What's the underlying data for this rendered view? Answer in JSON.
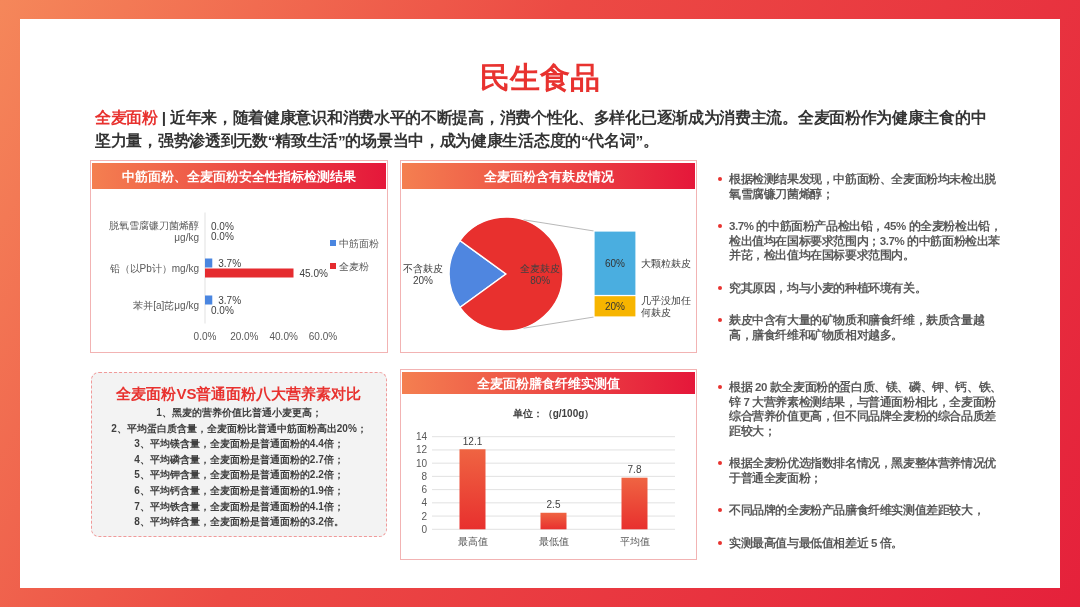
{
  "chart_data": [
    {
      "type": "other",
      "title": "民生食品",
      "subtitle": "**全麦面粉** | 近年来，随着健康意识和消费水平的不断提高，消费个性化、多样化已逐渐成为消费主流。全麦面粉作为健康主食的中坚力量，强势渗透到无数“精致生活”的场景当中，成为健康生活态度的“代名词”。"
    },
    {
      "type": "bar",
      "orientation": "horizontal",
      "title": "中筋面粉、全麦面粉安全性指标检测结果",
      "categories": [
        "脱氧雪腐镰刀菌烯醇μg/kg",
        "铅（以Pb计）mg/kg",
        "苯并[a]芘μg/kg"
      ],
      "series": [
        {
          "name": "中筋面粉",
          "color": "#4a86e0",
          "values": [
            0,
            3.7,
            3.7
          ],
          "value_labels": [
            "0.0%",
            "3.7%",
            "3.7%"
          ]
        },
        {
          "name": "全麦粉",
          "color": "#e52b2f",
          "values": [
            0,
            45,
            0
          ],
          "value_labels": [
            "0.0%",
            "45.0%",
            "0.0%"
          ]
        }
      ],
      "xlim": [
        0,
        60
      ],
      "xticks": [
        {
          "value": 0,
          "label": "0.0%"
        },
        {
          "value": 20,
          "label": "20.0%"
        },
        {
          "value": 40,
          "label": "40.0%"
        },
        {
          "value": 60,
          "label": "60.0%"
        }
      ],
      "legend": "right"
    },
    {
      "type": "pie",
      "title": "全麦面粉含有麸皮情况",
      "categories": [
        "不含麸皮",
        "全麦麸皮"
      ],
      "values": [
        20,
        80
      ],
      "colors": [
        "#4f86e0",
        "#e8302e"
      ],
      "value_labels": [
        "20%",
        "80%"
      ]
    },
    {
      "type": "bar",
      "stacked": true,
      "categories": [
        null
      ],
      "series": [
        {
          "name": "几乎没加任何麸皮",
          "color": "#f7b500",
          "values": [
            20
          ],
          "value_labels": [
            "20%"
          ]
        },
        {
          "name": "大颗粒麸皮",
          "color": "#4aaee0",
          "values": [
            60
          ],
          "value_labels": [
            "60%"
          ]
        }
      ]
    },
    {
      "type": "other",
      "annotations": [
        "根据检测结果发现，中筋面粉、全麦面粉均未检出脱氧雪腐镰刀菌烯醇；",
        "3.7% 的中筋面粉产品检出铅，45% 的全麦粉检出铅，检出值均在国标要求范围内；3.7% 的中筋面粉检出苯并芘，检出值均在国标要求范围内。",
        "究其原因，均与小麦的种植环境有关。",
        "麸皮中含有大量的矿物质和膳食纤维，麸质含量越高，膳食纤维和矿物质相对越多。"
      ]
    },
    {
      "type": "other",
      "title": "全麦面粉VS普通面粉八大营养素对比",
      "annotations": [
        "1、黑麦的营养价值比普通小麦更高；",
        "2、平均蛋白质含量，全麦面粉比普通中筋面粉高出20%；",
        "3、平均镁含量，全麦面粉是普通面粉的4.4倍；",
        "4、平均磷含量，全麦面粉是普通面粉的2.7倍；",
        "5、平均钾含量，全麦面粉是普通面粉的2.2倍；",
        "6、平均钙含量，全麦面粉是普通面粉的1.9倍；",
        "7、平均铁含量，全麦面粉是普通面粉的4.1倍；",
        "8、平均锌含量，全麦面粉是普通面粉的3.2倍。"
      ]
    },
    {
      "type": "bar",
      "title": "全麦面粉膳食纤维实测值",
      "subtitle": "单位：（g/100g）",
      "categories": [
        "最高值",
        "最低值",
        "平均值"
      ],
      "values": [
        12.1,
        2.5,
        7.8
      ],
      "color": "#e8302e",
      "ylim": [
        0,
        14
      ],
      "yticks": [
        0,
        2,
        4,
        6,
        8,
        10,
        12,
        14
      ],
      "grid": "y",
      "data_labels": true
    },
    {
      "type": "other",
      "annotations": [
        "根据 20 款全麦面粉的蛋白质、镁、磷、钾、钙、铁、锌 7 大营养素检测结果，与普通面粉相比，全麦面粉综合营养价值更高，但不同品牌全麦粉的综合品质差距较大；",
        "根据全麦粉优选指数排名情况，黑麦整体营养情况优于普通全麦面粉；",
        "不同品牌的全麦粉产品膳食纤维实测值差距较大，",
        "实测最高值与最低值相差近 5 倍。"
      ]
    }
  ]
}
